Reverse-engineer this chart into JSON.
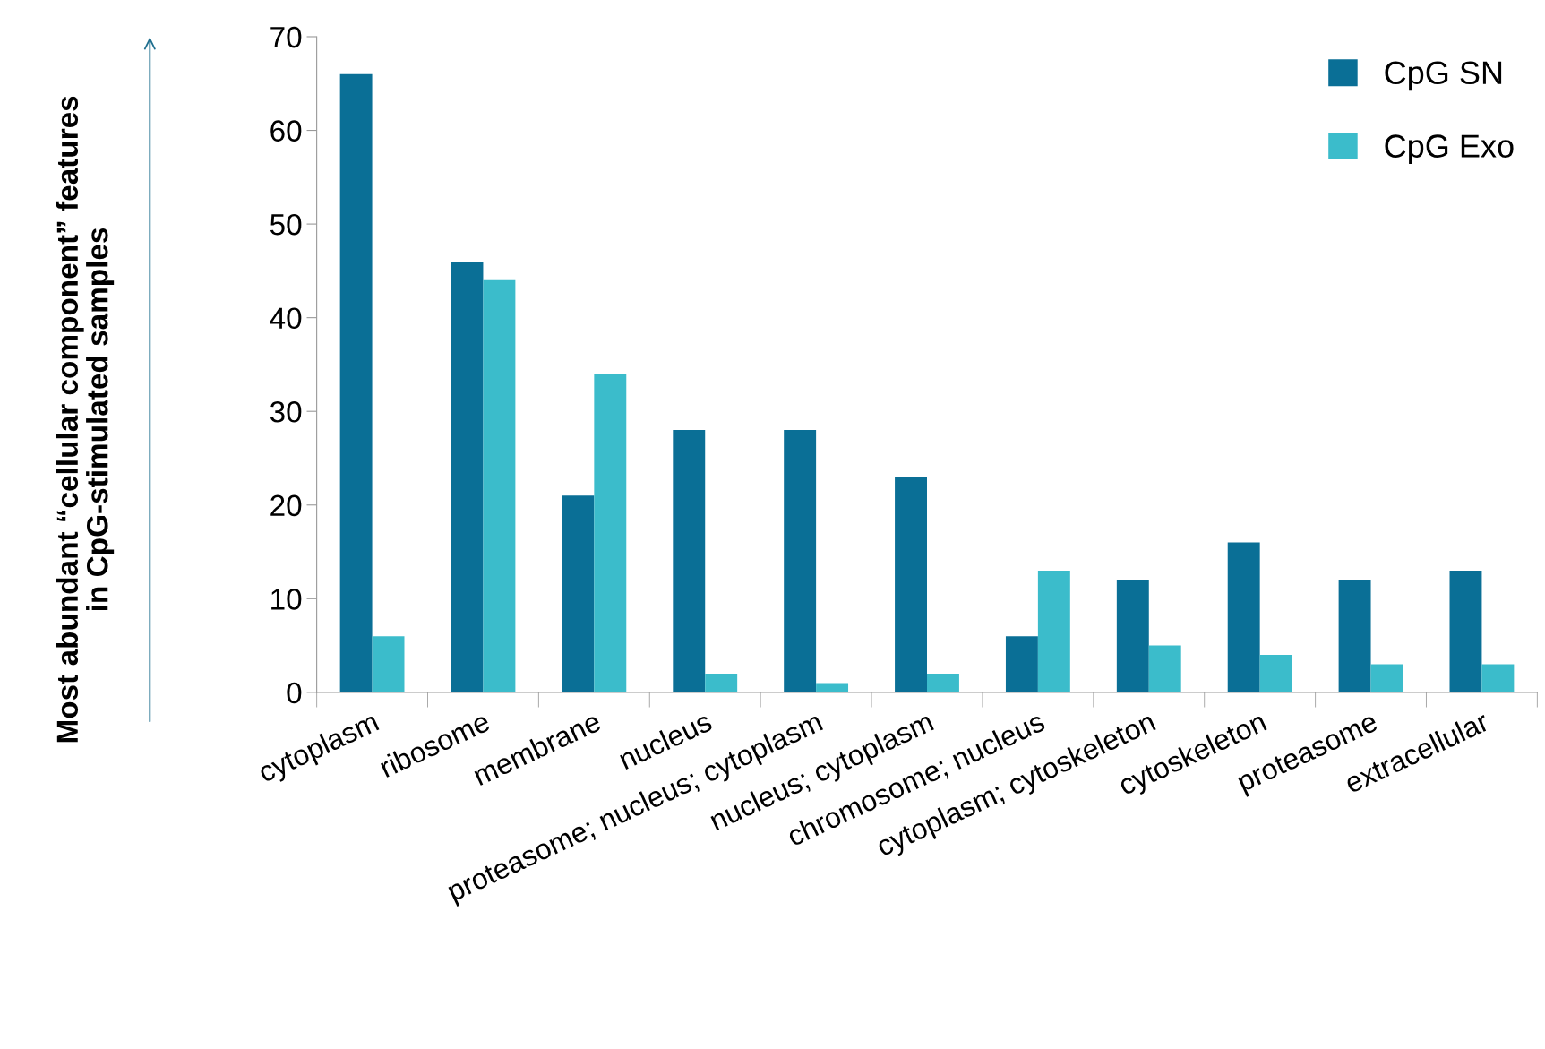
{
  "chart_data": {
    "type": "bar",
    "ylabel": "Most abundant “cellular component” features\nin CpG-stimulated samples",
    "categories": [
      "cytoplasm",
      "ribosome",
      "membrane",
      "nucleus",
      "proteasome; nucleus; cytoplasm",
      "nucleus; cytoplasm",
      "chromosome; nucleus",
      "cytoplasm; cytoskeleton",
      "cytoskeleton",
      "proteasome",
      "extracellular"
    ],
    "series": [
      {
        "name": "CpG SN",
        "color": "#0a6f96",
        "values": [
          66,
          46,
          21,
          28,
          28,
          23,
          6,
          12,
          16,
          12,
          13
        ]
      },
      {
        "name": "CpG Exo",
        "color": "#3bbccb",
        "values": [
          6,
          44,
          34,
          2,
          1,
          2,
          13,
          5,
          4,
          3,
          3
        ]
      }
    ],
    "ylim": [
      0,
      70
    ],
    "yticks": [
      0,
      10,
      20,
      30,
      40,
      50,
      60,
      70
    ],
    "grid": false,
    "legend": "top right"
  }
}
